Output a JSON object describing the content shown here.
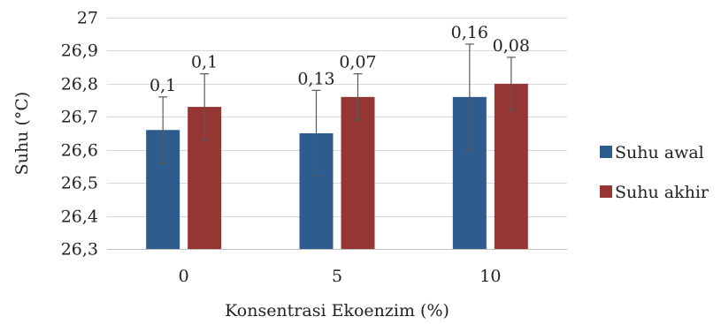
{
  "chart_data": {
    "type": "bar",
    "title": "",
    "xlabel": "Konsentrasi Ekoenzim (%)",
    "ylabel": "Suhu (°C)",
    "categories": [
      "0",
      "5",
      "10"
    ],
    "ylim": [
      26.3,
      27.0
    ],
    "yticks": [
      "26,3",
      "26,4",
      "26,5",
      "26,6",
      "26,7",
      "26,8",
      "26,9",
      "27"
    ],
    "grid": true,
    "legend_position": "right",
    "series": [
      {
        "name": "Suhu awal",
        "color": "#2F5C8F",
        "values": [
          26.66,
          26.65,
          26.76
        ],
        "errors": [
          0.1,
          0.13,
          0.16
        ],
        "error_labels": [
          "0,1",
          "0,13",
          "0,16"
        ]
      },
      {
        "name": "Suhu akhir",
        "color": "#963634",
        "values": [
          26.73,
          26.76,
          26.8
        ],
        "errors": [
          0.1,
          0.07,
          0.08
        ],
        "error_labels": [
          "0,1",
          "0,07",
          "0,08"
        ]
      }
    ]
  }
}
